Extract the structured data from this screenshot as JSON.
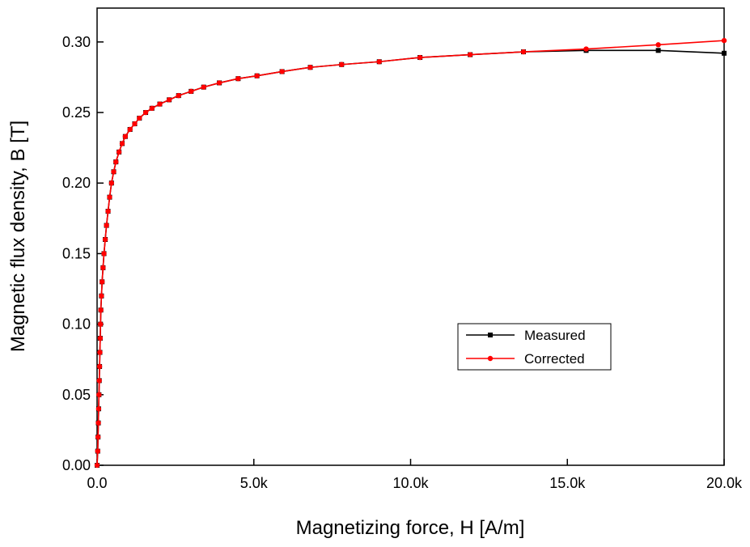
{
  "chart_data": {
    "type": "line",
    "xlabel": "Magnetizing force, H  [A/m]",
    "ylabel": "Magnetic flux density, B  [T]",
    "x": [
      0,
      20,
      30,
      40,
      50,
      60,
      70,
      80,
      90,
      100,
      110,
      120,
      140,
      160,
      190,
      220,
      260,
      300,
      350,
      400,
      460,
      530,
      600,
      700,
      800,
      900,
      1050,
      1200,
      1350,
      1550,
      1750,
      2000,
      2300,
      2600,
      3000,
      3400,
      3900,
      4500,
      5100,
      5900,
      6800,
      7800,
      9000,
      10300,
      11900,
      13600,
      15600,
      17900,
      20000
    ],
    "series": [
      {
        "name": "Measured",
        "color": "#000000",
        "marker": "square",
        "values": [
          0,
          0.01,
          0.02,
          0.03,
          0.04,
          0.05,
          0.06,
          0.07,
          0.08,
          0.09,
          0.1,
          0.11,
          0.12,
          0.13,
          0.14,
          0.15,
          0.16,
          0.17,
          0.18,
          0.19,
          0.2,
          0.208,
          0.215,
          0.222,
          0.228,
          0.233,
          0.238,
          0.242,
          0.246,
          0.25,
          0.253,
          0.256,
          0.259,
          0.262,
          0.265,
          0.268,
          0.271,
          0.274,
          0.276,
          0.279,
          0.282,
          0.284,
          0.286,
          0.289,
          0.291,
          0.293,
          0.294,
          0.294,
          0.292
        ]
      },
      {
        "name": "Corrected",
        "color": "#ff0000",
        "marker": "circle",
        "values": [
          0,
          0.01,
          0.02,
          0.03,
          0.04,
          0.05,
          0.06,
          0.07,
          0.08,
          0.09,
          0.1,
          0.11,
          0.12,
          0.13,
          0.14,
          0.15,
          0.16,
          0.17,
          0.18,
          0.19,
          0.2,
          0.208,
          0.215,
          0.222,
          0.228,
          0.233,
          0.238,
          0.242,
          0.246,
          0.25,
          0.253,
          0.256,
          0.259,
          0.262,
          0.265,
          0.268,
          0.271,
          0.274,
          0.276,
          0.279,
          0.282,
          0.284,
          0.286,
          0.289,
          0.291,
          0.293,
          0.295,
          0.298,
          0.301
        ]
      }
    ],
    "xlim": [
      0,
      20000
    ],
    "ylim": [
      0,
      0.324
    ],
    "xticks": [
      {
        "value": 0,
        "label": "0.0"
      },
      {
        "value": 5000,
        "label": "5.0k"
      },
      {
        "value": 10000,
        "label": "10.0k"
      },
      {
        "value": 15000,
        "label": "15.0k"
      },
      {
        "value": 20000,
        "label": "20.0k"
      }
    ],
    "yticks": [
      {
        "value": 0,
        "label": "0.00"
      },
      {
        "value": 0.05,
        "label": "0.05"
      },
      {
        "value": 0.1,
        "label": "0.10"
      },
      {
        "value": 0.15,
        "label": "0.15"
      },
      {
        "value": 0.2,
        "label": "0.20"
      },
      {
        "value": 0.25,
        "label": "0.25"
      },
      {
        "value": 0.3,
        "label": "0.30"
      }
    ],
    "grid": false
  }
}
